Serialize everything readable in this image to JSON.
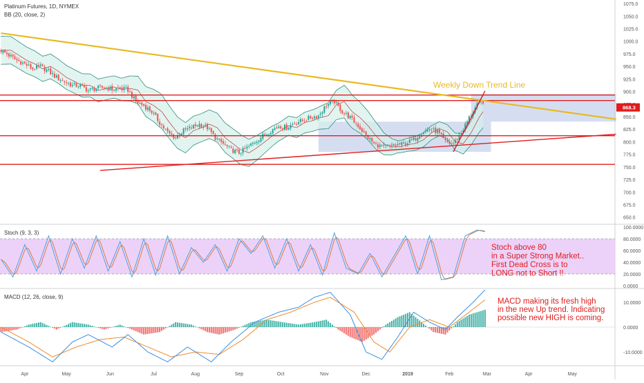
{
  "chart_data": [
    {
      "type": "candlestick",
      "title": "Platinum Futures, 1D, NYMEX",
      "indicator": "BB (20, close, 2)",
      "last_price_label": "868.3",
      "price_axis_ticks": [
        "1075.0",
        "1050.0",
        "1025.0",
        "1000.0",
        "975.0",
        "950.0",
        "925.0",
        "900.0",
        "875.0",
        "850.0",
        "825.0",
        "800.0",
        "775.0",
        "750.0",
        "725.0",
        "700.0",
        "675.0",
        "650.0"
      ],
      "price_axis_values": [
        1075,
        1050,
        1025,
        1000,
        975,
        950,
        925,
        900,
        875,
        850,
        825,
        800,
        775,
        750,
        725,
        700,
        675,
        650
      ],
      "ylim": [
        640,
        1082
      ],
      "x_ticks": [
        "Apr",
        "May",
        "Jun",
        "Jul",
        "Aug",
        "Sep",
        "Oct",
        "Nov",
        "Dec",
        "2019",
        "Feb",
        "Mar",
        "Apr",
        "May"
      ],
      "x_tick_index": [
        12,
        33,
        55,
        77,
        98,
        120,
        141,
        163,
        184,
        205,
        226,
        245,
        266,
        288
      ],
      "x_count": 310,
      "close_anchors": [
        [
          0,
          982
        ],
        [
          4,
          972
        ],
        [
          8,
          962
        ],
        [
          12,
          955
        ],
        [
          16,
          945
        ],
        [
          20,
          950
        ],
        [
          24,
          940
        ],
        [
          28,
          928
        ],
        [
          32,
          920
        ],
        [
          36,
          912
        ],
        [
          40,
          912
        ],
        [
          44,
          902
        ],
        [
          48,
          906
        ],
        [
          52,
          909
        ],
        [
          56,
          904
        ],
        [
          60,
          906
        ],
        [
          64,
          903
        ],
        [
          68,
          880
        ],
        [
          72,
          872
        ],
        [
          76,
          860
        ],
        [
          80,
          838
        ],
        [
          84,
          818
        ],
        [
          88,
          808
        ],
        [
          92,
          822
        ],
        [
          96,
          828
        ],
        [
          100,
          835
        ],
        [
          104,
          828
        ],
        [
          108,
          808
        ],
        [
          112,
          796
        ],
        [
          116,
          784
        ],
        [
          120,
          778
        ],
        [
          124,
          788
        ],
        [
          128,
          800
        ],
        [
          132,
          812
        ],
        [
          136,
          822
        ],
        [
          140,
          832
        ],
        [
          144,
          828
        ],
        [
          148,
          838
        ],
        [
          152,
          842
        ],
        [
          156,
          848
        ],
        [
          160,
          852
        ],
        [
          164,
          873
        ],
        [
          168,
          880
        ],
        [
          172,
          860
        ],
        [
          176,
          848
        ],
        [
          180,
          832
        ],
        [
          184,
          812
        ],
        [
          188,
          796
        ],
        [
          192,
          790
        ],
        [
          196,
          790
        ],
        [
          200,
          794
        ],
        [
          204,
          797
        ],
        [
          208,
          804
        ],
        [
          212,
          818
        ],
        [
          216,
          826
        ],
        [
          220,
          820
        ],
        [
          224,
          800
        ],
        [
          228,
          796
        ],
        [
          232,
          818
        ],
        [
          236,
          848
        ],
        [
          240,
          872
        ],
        [
          243,
          880
        ]
      ],
      "bb_half_width_anchors": [
        [
          0,
          28
        ],
        [
          30,
          24
        ],
        [
          60,
          22
        ],
        [
          80,
          34
        ],
        [
          100,
          28
        ],
        [
          120,
          30
        ],
        [
          140,
          18
        ],
        [
          160,
          22
        ],
        [
          175,
          34
        ],
        [
          190,
          26
        ],
        [
          200,
          12
        ],
        [
          210,
          14
        ],
        [
          225,
          14
        ],
        [
          235,
          22
        ],
        [
          243,
          32
        ]
      ],
      "horizontal_lines": [
        893,
        882,
        812,
        755
      ],
      "trend_lines": [
        {
          "name": "weekly-down-trend",
          "color": "#e8b923",
          "from": [
            0,
            1016
          ],
          "to": [
            310,
            845
          ]
        },
        {
          "name": "rising-support",
          "color": "#e01c1c",
          "from": [
            50,
            743
          ],
          "to": [
            310,
            815
          ]
        },
        {
          "name": "steep-up",
          "color": "#e01c1c",
          "from": [
            228,
            780
          ],
          "to": [
            244,
            901
          ]
        }
      ],
      "boxes": [
        {
          "x": [
            160,
            247
          ],
          "y": [
            780,
            840
          ]
        },
        {
          "x": [
            237,
            310
          ],
          "y": [
            840,
            895
          ]
        }
      ],
      "annotation": "Weekly Down Trend Line"
    },
    {
      "type": "line",
      "title": "Stoch (9, 3, 3)",
      "ylim": [
        0,
        100
      ],
      "ticks": [
        "100.0000",
        "80.0000",
        "60.0000",
        "40.0000",
        "20.0000",
        "0.0000"
      ],
      "tick_values": [
        100,
        80,
        60,
        40,
        20,
        0
      ],
      "band": [
        20,
        80
      ],
      "k_anchors": [
        [
          0,
          45
        ],
        [
          6,
          15
        ],
        [
          12,
          70
        ],
        [
          18,
          25
        ],
        [
          24,
          85
        ],
        [
          30,
          20
        ],
        [
          36,
          80
        ],
        [
          42,
          30
        ],
        [
          48,
          85
        ],
        [
          54,
          25
        ],
        [
          60,
          75
        ],
        [
          66,
          15
        ],
        [
          72,
          80
        ],
        [
          78,
          18
        ],
        [
          84,
          85
        ],
        [
          90,
          20
        ],
        [
          96,
          65
        ],
        [
          102,
          40
        ],
        [
          108,
          70
        ],
        [
          114,
          25
        ],
        [
          120,
          80
        ],
        [
          126,
          55
        ],
        [
          132,
          85
        ],
        [
          138,
          30
        ],
        [
          144,
          80
        ],
        [
          150,
          25
        ],
        [
          156,
          70
        ],
        [
          162,
          18
        ],
        [
          168,
          90
        ],
        [
          174,
          30
        ],
        [
          180,
          20
        ],
        [
          186,
          55
        ],
        [
          192,
          15
        ],
        [
          198,
          50
        ],
        [
          204,
          85
        ],
        [
          210,
          20
        ],
        [
          216,
          85
        ],
        [
          222,
          10
        ],
        [
          228,
          15
        ],
        [
          234,
          85
        ],
        [
          240,
          95
        ],
        [
          244,
          92
        ]
      ],
      "annotation": [
        "Stoch above 80",
        "in a Super Strong Market..",
        "First Dead Cross is to",
        "LONG not to Short !!"
      ]
    },
    {
      "type": "bar",
      "title": "MACD (12, 26, close, 9)",
      "ylim": [
        -15,
        15
      ],
      "ticks": [
        "10.0000",
        "0.0000",
        "-10.0000"
      ],
      "tick_values": [
        10,
        0,
        -10
      ],
      "hist_anchors": [
        [
          0,
          -2
        ],
        [
          8,
          -1
        ],
        [
          14,
          1
        ],
        [
          20,
          2
        ],
        [
          28,
          -1
        ],
        [
          36,
          2
        ],
        [
          44,
          1
        ],
        [
          52,
          -1
        ],
        [
          60,
          1
        ],
        [
          66,
          -1
        ],
        [
          72,
          -3
        ],
        [
          80,
          -2
        ],
        [
          88,
          2
        ],
        [
          96,
          1
        ],
        [
          104,
          -2
        ],
        [
          110,
          -3
        ],
        [
          118,
          -1
        ],
        [
          126,
          2
        ],
        [
          134,
          3
        ],
        [
          142,
          2
        ],
        [
          150,
          1
        ],
        [
          158,
          2
        ],
        [
          164,
          3
        ],
        [
          170,
          -1
        ],
        [
          176,
          -4
        ],
        [
          182,
          -6
        ],
        [
          188,
          -3
        ],
        [
          194,
          1
        ],
        [
          200,
          4
        ],
        [
          206,
          6
        ],
        [
          212,
          2
        ],
        [
          218,
          -2
        ],
        [
          224,
          -3
        ],
        [
          230,
          2
        ],
        [
          236,
          5
        ],
        [
          244,
          7
        ]
      ],
      "macd_anchors": [
        [
          0,
          -2
        ],
        [
          14,
          -8
        ],
        [
          26,
          -14
        ],
        [
          36,
          -6
        ],
        [
          44,
          -3
        ],
        [
          56,
          -8
        ],
        [
          64,
          -3
        ],
        [
          74,
          -10
        ],
        [
          84,
          -14
        ],
        [
          94,
          -8
        ],
        [
          106,
          -14
        ],
        [
          116,
          -6
        ],
        [
          128,
          2
        ],
        [
          140,
          6
        ],
        [
          150,
          8
        ],
        [
          158,
          12
        ],
        [
          166,
          14
        ],
        [
          176,
          5
        ],
        [
          184,
          -10
        ],
        [
          192,
          -13
        ],
        [
          200,
          -4
        ],
        [
          208,
          6
        ],
        [
          216,
          2
        ],
        [
          224,
          -1
        ],
        [
          230,
          4
        ],
        [
          238,
          10
        ],
        [
          244,
          15
        ]
      ],
      "signal_anchors": [
        [
          0,
          0
        ],
        [
          14,
          -6
        ],
        [
          26,
          -12
        ],
        [
          38,
          -8
        ],
        [
          50,
          -5
        ],
        [
          62,
          -4
        ],
        [
          74,
          -8
        ],
        [
          86,
          -12
        ],
        [
          98,
          -10
        ],
        [
          110,
          -11
        ],
        [
          122,
          -5
        ],
        [
          134,
          3
        ],
        [
          146,
          6
        ],
        [
          158,
          10
        ],
        [
          166,
          12
        ],
        [
          178,
          6
        ],
        [
          188,
          -6
        ],
        [
          196,
          -10
        ],
        [
          206,
          0
        ],
        [
          216,
          3
        ],
        [
          226,
          0
        ],
        [
          236,
          6
        ],
        [
          244,
          11
        ]
      ],
      "annotation": [
        "MACD making its fresh high",
        "in the new Up trend. Indicating",
        "possible new HIGH is coming."
      ]
    }
  ],
  "colors": {
    "up": "#26a69a",
    "down": "#ef5350",
    "bb_line": "#2e8b7a",
    "bb_fill": "#d4f0ea",
    "box": "#b3c2e6",
    "stoch_band": "#e7c7f7",
    "stoch_k": "#4aa3e0",
    "stoch_d": "#e07a3a",
    "hist_up": "#26a69a",
    "hist_down": "#ef5350",
    "macd_line": "#3b8ee0",
    "signal_line": "#f08a2c",
    "annotation_red": "#e01c1c",
    "annotation_gold": "#e8b923",
    "axis_text": "#555555"
  }
}
